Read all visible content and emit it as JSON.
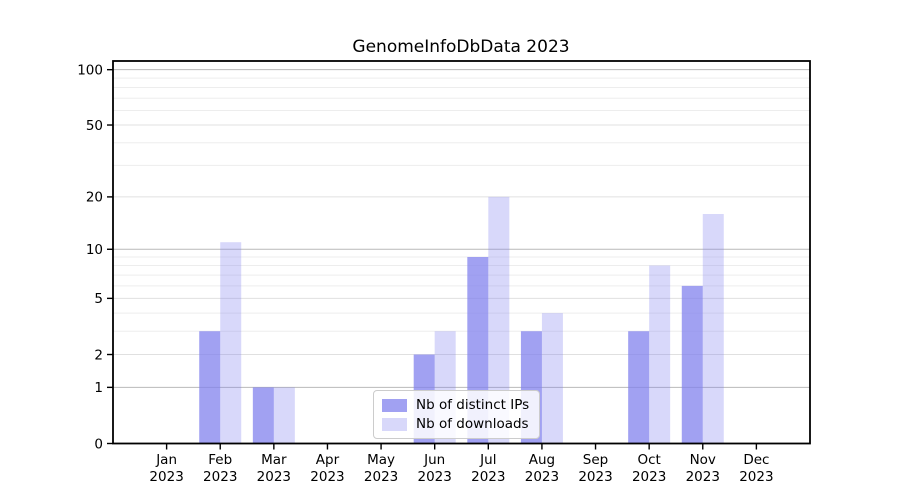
{
  "title": "GenomeInfoDbData 2023",
  "chart_data": {
    "type": "bar",
    "title": "GenomeInfoDbData 2023",
    "categories": [
      "Jan",
      "Feb",
      "Mar",
      "Apr",
      "May",
      "Jun",
      "Jul",
      "Aug",
      "Sep",
      "Oct",
      "Nov",
      "Dec"
    ],
    "x_tick_labels": [
      {
        "month": "Jan",
        "year": "2023"
      },
      {
        "month": "Feb",
        "year": "2023"
      },
      {
        "month": "Mar",
        "year": "2023"
      },
      {
        "month": "Apr",
        "year": "2023"
      },
      {
        "month": "May",
        "year": "2023"
      },
      {
        "month": "Jun",
        "year": "2023"
      },
      {
        "month": "Jul",
        "year": "2023"
      },
      {
        "month": "Aug",
        "year": "2023"
      },
      {
        "month": "Sep",
        "year": "2023"
      },
      {
        "month": "Oct",
        "year": "2023"
      },
      {
        "month": "Nov",
        "year": "2023"
      },
      {
        "month": "Dec",
        "year": "2023"
      }
    ],
    "series": [
      {
        "name": "Nb of distinct IPs",
        "color": "#8282ee",
        "opacity": 0.75,
        "values": [
          0,
          3,
          1,
          0,
          0,
          2,
          9,
          3,
          0,
          3,
          6,
          0
        ]
      },
      {
        "name": "Nb of downloads",
        "color": "#8282ee",
        "opacity": 0.31,
        "values": [
          0,
          11,
          1,
          0,
          0,
          3,
          20,
          4,
          0,
          8,
          16,
          0
        ]
      }
    ],
    "y_axis": {
      "scale": "log1p",
      "tick_values": [
        0,
        1,
        2,
        5,
        10,
        20,
        50,
        100
      ],
      "tick_labels": [
        "0",
        "1",
        "2",
        "5",
        "10",
        "20",
        "50",
        "100"
      ],
      "minor_tick_values": [
        3,
        4,
        6,
        7,
        8,
        9,
        30,
        40,
        60,
        70,
        80,
        90
      ],
      "ylim": [
        0,
        111
      ]
    },
    "grid": true,
    "legend_position": "bottom-center",
    "colors": {
      "decade_gridline": "#b9b9b9",
      "labeled_gridline": "#e0e0e0",
      "minor_gridline": "#ededed",
      "frame": "#000000",
      "text": "#000000"
    }
  }
}
